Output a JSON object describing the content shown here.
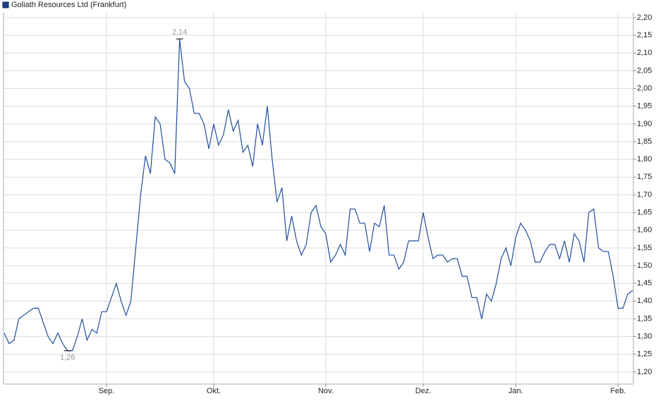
{
  "chart_data": {
    "type": "line",
    "series": [
      {
        "name": "Goliath Resources Ltd (Frankfurt)",
        "color": "#1f4e9c",
        "values": [
          1.31,
          1.28,
          1.29,
          1.35,
          1.36,
          1.37,
          1.38,
          1.38,
          1.34,
          1.3,
          1.28,
          1.31,
          1.28,
          1.26,
          1.26,
          1.3,
          1.35,
          1.29,
          1.32,
          1.31,
          1.37,
          1.37,
          1.41,
          1.45,
          1.4,
          1.36,
          1.4,
          1.55,
          1.7,
          1.81,
          1.76,
          1.92,
          1.9,
          1.8,
          1.79,
          1.76,
          2.14,
          2.02,
          2.0,
          1.93,
          1.93,
          1.9,
          1.83,
          1.9,
          1.84,
          1.87,
          1.94,
          1.88,
          1.91,
          1.82,
          1.84,
          1.78,
          1.9,
          1.84,
          1.95,
          1.8,
          1.68,
          1.72,
          1.57,
          1.64,
          1.57,
          1.53,
          1.56,
          1.65,
          1.67,
          1.61,
          1.59,
          1.51,
          1.53,
          1.56,
          1.53,
          1.66,
          1.66,
          1.62,
          1.62,
          1.54,
          1.62,
          1.61,
          1.67,
          1.53,
          1.53,
          1.49,
          1.51,
          1.57,
          1.57,
          1.57,
          1.65,
          1.58,
          1.52,
          1.53,
          1.53,
          1.51,
          1.52,
          1.52,
          1.47,
          1.47,
          1.41,
          1.41,
          1.35,
          1.42,
          1.4,
          1.45,
          1.52,
          1.55,
          1.5,
          1.58,
          1.62,
          1.6,
          1.57,
          1.51,
          1.51,
          1.54,
          1.56,
          1.56,
          1.52,
          1.57,
          1.51,
          1.59,
          1.57,
          1.51,
          1.65,
          1.66,
          1.55,
          1.54,
          1.54,
          1.47,
          1.38,
          1.38,
          1.42,
          1.43
        ],
        "value_labels": [
          null,
          null,
          null,
          null,
          null,
          null,
          null,
          null,
          null,
          null,
          null,
          null,
          null,
          "1,26",
          null,
          null,
          null,
          null,
          null,
          null,
          null,
          null,
          null,
          null,
          null,
          null,
          null,
          null,
          null,
          null,
          null,
          null,
          null,
          null,
          null,
          null,
          "2,14",
          null,
          null,
          null,
          null,
          null,
          null,
          null,
          null,
          null,
          null,
          null,
          null,
          null,
          null,
          null,
          null,
          null,
          null,
          null,
          null,
          null,
          null,
          null,
          null,
          null,
          null,
          null,
          null,
          null,
          null,
          null,
          null,
          null,
          null,
          null,
          null,
          null,
          null,
          null,
          null,
          null,
          null,
          null,
          null,
          null,
          null,
          null,
          null,
          null,
          null,
          null,
          null,
          null,
          null,
          null,
          null,
          null,
          null,
          null,
          null,
          null,
          null,
          null,
          null,
          null,
          null,
          null,
          null,
          null,
          null,
          null,
          null,
          null,
          null,
          null,
          null,
          null,
          null,
          null,
          null,
          null,
          null,
          null,
          null,
          null,
          null,
          null,
          null,
          null,
          null,
          null,
          null,
          null
        ]
      }
    ],
    "categories": [
      null,
      null,
      null,
      null,
      null,
      null,
      null,
      null,
      null,
      null,
      null,
      null,
      null,
      null,
      null,
      null,
      null,
      null,
      null,
      null,
      null,
      "Sep.",
      null,
      null,
      null,
      null,
      null,
      null,
      null,
      null,
      null,
      null,
      null,
      null,
      null,
      null,
      null,
      null,
      null,
      null,
      null,
      null,
      null,
      "Okt.",
      null,
      null,
      null,
      null,
      null,
      null,
      null,
      null,
      null,
      null,
      null,
      null,
      null,
      null,
      null,
      null,
      null,
      null,
      null,
      null,
      null,
      null,
      "Nov.",
      null,
      null,
      null,
      null,
      null,
      null,
      null,
      null,
      null,
      null,
      null,
      null,
      null,
      null,
      null,
      null,
      null,
      null,
      null,
      "Dez.",
      null,
      null,
      null,
      null,
      null,
      null,
      null,
      null,
      null,
      null,
      null,
      null,
      null,
      null,
      null,
      null,
      null,
      null,
      "Jan.",
      null,
      null,
      null,
      null,
      null,
      null,
      null,
      null,
      null,
      null,
      null,
      null,
      null,
      null,
      null,
      null,
      null,
      null,
      null,
      null,
      "Feb.",
      null,
      null,
      null
    ],
    "ylim": [
      1.166,
      2.214
    ],
    "yticks": [
      {
        "value": 1.2,
        "label": "1,20"
      },
      {
        "value": 1.25,
        "label": "1,25"
      },
      {
        "value": 1.3,
        "label": "1,30"
      },
      {
        "value": 1.35,
        "label": "1,35"
      },
      {
        "value": 1.4,
        "label": "1,40"
      },
      {
        "value": 1.45,
        "label": "1,45"
      },
      {
        "value": 1.5,
        "label": "1,50"
      },
      {
        "value": 1.55,
        "label": "1,55"
      },
      {
        "value": 1.6,
        "label": "1,60"
      },
      {
        "value": 1.65,
        "label": "1,65"
      },
      {
        "value": 1.7,
        "label": "1,70"
      },
      {
        "value": 1.75,
        "label": "1,75"
      },
      {
        "value": 1.8,
        "label": "1,80"
      },
      {
        "value": 1.85,
        "label": "1,85"
      },
      {
        "value": 1.9,
        "label": "1,90"
      },
      {
        "value": 1.95,
        "label": "1,95"
      },
      {
        "value": 2.0,
        "label": "2,00"
      },
      {
        "value": 2.05,
        "label": "2,05"
      },
      {
        "value": 2.1,
        "label": "2,10"
      },
      {
        "value": 2.15,
        "label": "2,15"
      },
      {
        "value": 2.2,
        "label": "2,20"
      }
    ],
    "grid": true
  }
}
